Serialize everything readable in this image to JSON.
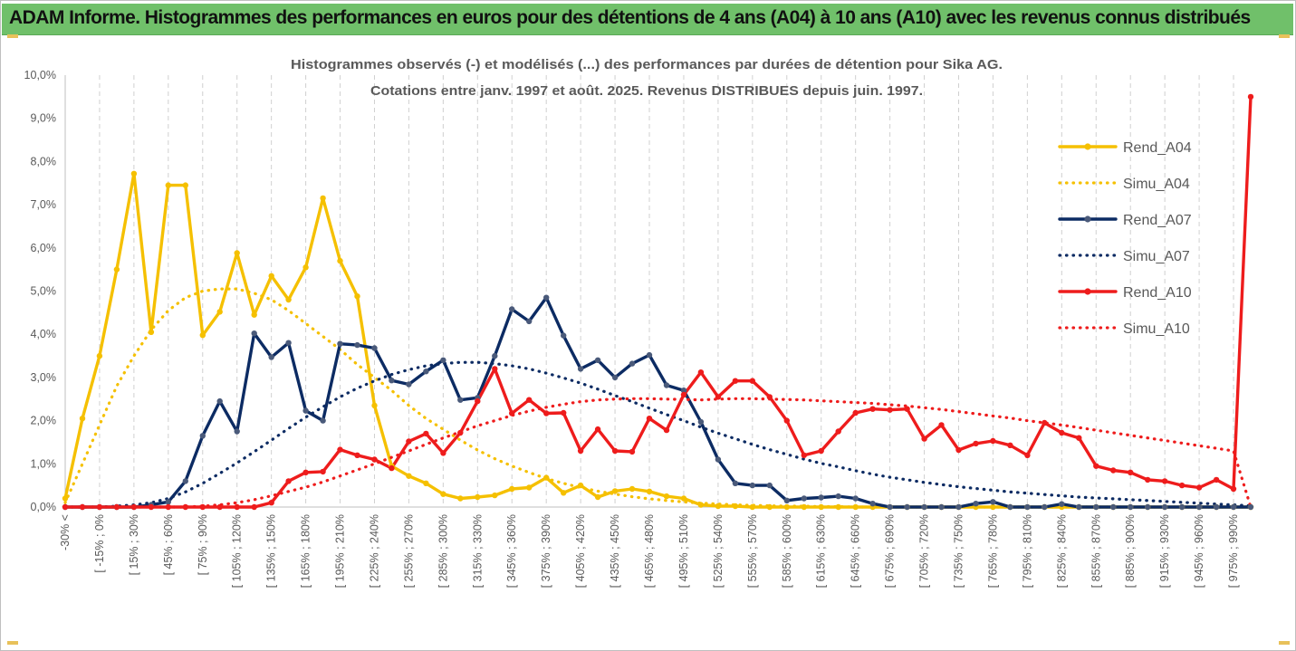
{
  "banner": {
    "title": "ADAM Informe. Histogrammes des performances en euros pour des détentions de 4 ans (A04) à 10 ans (A10) avec les revenus connus distribués"
  },
  "chart_data": {
    "type": "line",
    "title_line1": "Histogrammes observés (-) et modélisés (...) des performances par durées de détention pour Sika AG.",
    "title_line2": "Cotations entre janv. 1997 et août. 2025. Revenus DISTRIBUES depuis juin. 1997.",
    "ylim": [
      0,
      10
    ],
    "y_ticks": [
      "0,0%",
      "1,0%",
      "2,0%",
      "3,0%",
      "4,0%",
      "5,0%",
      "6,0%",
      "7,0%",
      "8,0%",
      "9,0%",
      "10,0%"
    ],
    "x_tick_labels": [
      "-30% <",
      "[ -15% ; 0%",
      "[ 15% ; 30%",
      "[ 45% ; 60%",
      "[ 75% ; 90%",
      "[ 105% ; 120%",
      "[ 135% ; 150%",
      "[ 165% ; 180%",
      "[ 195% ; 210%",
      "[ 225% ; 240%",
      "[ 255% ; 270%",
      "[ 285% ; 300%",
      "[ 315% ; 330%",
      "[ 345% ; 360%",
      "[ 375% ; 390%",
      "[ 405% ; 420%",
      "[ 435% ; 450%",
      "[ 465% ; 480%",
      "[ 495% ; 510%",
      "[ 525% ; 540%",
      "[ 555% ; 570%",
      "[ 585% ; 600%",
      "[ 615% ; 630%",
      "[ 645% ; 660%",
      "[ 675% ; 690%",
      "[ 705% ; 720%",
      "[ 735% ; 750%",
      "[ 765% ; 780%",
      "[ 795% ; 810%",
      "[ 825% ; 840%",
      "[ 855% ; 870%",
      "[ 885% ; 900%",
      "[ 915% ; 930%",
      "[ 945% ; 960%",
      "[ 975% ; 990%"
    ],
    "n_categories": 70,
    "legend_position": "right",
    "grid": "vertical dashed",
    "series": [
      {
        "name": "Rend_A04",
        "style": "solid",
        "color": "#f5c000",
        "values": [
          0.2,
          2.05,
          3.5,
          5.5,
          7.72,
          4.05,
          7.45,
          7.45,
          3.98,
          4.52,
          5.88,
          4.45,
          5.35,
          4.8,
          5.55,
          7.15,
          5.7,
          4.88,
          2.35,
          0.95,
          0.72,
          0.55,
          0.3,
          0.2,
          0.23,
          0.27,
          0.42,
          0.45,
          0.68,
          0.33,
          0.5,
          0.23,
          0.37,
          0.42,
          0.36,
          0.25,
          0.2,
          0.05,
          0.02,
          0.02,
          0.0,
          0.0,
          0.0,
          0.0,
          0.0,
          0.0,
          0.0,
          0.0,
          0.0,
          0.0,
          0.0,
          0.0,
          0.0,
          0.0,
          0.0,
          0.0,
          0.0,
          0.0,
          0.0,
          0.0,
          0.0,
          0.0,
          0.0,
          0.0,
          0.0,
          0.0,
          0.0,
          0.0,
          0.0,
          0.0
        ]
      },
      {
        "name": "Simu_A04",
        "style": "dotted",
        "color": "#f5c000",
        "values": [
          0.1,
          1.0,
          1.9,
          2.8,
          3.5,
          4.1,
          4.55,
          4.85,
          5.0,
          5.05,
          5.05,
          4.95,
          4.8,
          4.55,
          4.25,
          3.95,
          3.65,
          3.3,
          3.0,
          2.7,
          2.35,
          2.05,
          1.8,
          1.55,
          1.32,
          1.12,
          0.95,
          0.8,
          0.66,
          0.55,
          0.45,
          0.37,
          0.3,
          0.24,
          0.19,
          0.15,
          0.12,
          0.09,
          0.07,
          0.05,
          0.04,
          0.03,
          0.02,
          0.02,
          0.01,
          0.01,
          0.0,
          0.0,
          0.0,
          0.0,
          0.0,
          0.0,
          0.0,
          0.0,
          0.0,
          0.0,
          0.0,
          0.0,
          0.0,
          0.0,
          0.0,
          0.0,
          0.0,
          0.0,
          0.0,
          0.0,
          0.0,
          0.0,
          0.0,
          0.0
        ]
      },
      {
        "name": "Rend_A07",
        "style": "solid",
        "color": "#0c2b63",
        "values": [
          0.0,
          0.0,
          0.0,
          0.0,
          0.0,
          0.05,
          0.12,
          0.6,
          1.65,
          2.45,
          1.75,
          4.02,
          3.47,
          3.8,
          2.23,
          2.0,
          3.78,
          3.75,
          3.68,
          2.93,
          2.84,
          3.14,
          3.4,
          2.48,
          2.53,
          3.5,
          4.58,
          4.3,
          4.85,
          3.97,
          3.2,
          3.4,
          3.0,
          3.32,
          3.52,
          2.82,
          2.7,
          1.97,
          1.1,
          0.55,
          0.5,
          0.5,
          0.15,
          0.2,
          0.22,
          0.25,
          0.2,
          0.08,
          0.0,
          0.0,
          0.0,
          0.0,
          0.0,
          0.08,
          0.12,
          0.0,
          0.0,
          0.0,
          0.07,
          0.0,
          0.0,
          0.0,
          0.0,
          0.0,
          0.0,
          0.0,
          0.0,
          0.0,
          0.0,
          0.0
        ]
      },
      {
        "name": "Simu_A07",
        "style": "dotted",
        "color": "#0c2b63",
        "values": [
          0.0,
          0.0,
          0.0,
          0.02,
          0.05,
          0.1,
          0.2,
          0.35,
          0.55,
          0.78,
          1.02,
          1.28,
          1.55,
          1.82,
          2.08,
          2.32,
          2.55,
          2.75,
          2.92,
          3.07,
          3.18,
          3.27,
          3.32,
          3.35,
          3.35,
          3.32,
          3.27,
          3.2,
          3.1,
          2.99,
          2.87,
          2.73,
          2.58,
          2.44,
          2.29,
          2.14,
          2.0,
          1.85,
          1.71,
          1.58,
          1.45,
          1.33,
          1.22,
          1.11,
          1.01,
          0.93,
          0.84,
          0.76,
          0.69,
          0.63,
          0.57,
          0.52,
          0.47,
          0.43,
          0.39,
          0.35,
          0.32,
          0.29,
          0.26,
          0.23,
          0.21,
          0.19,
          0.17,
          0.15,
          0.13,
          0.11,
          0.09,
          0.07,
          0.05,
          0.03
        ]
      },
      {
        "name": "Rend_A10",
        "style": "solid",
        "color": "#ee1c1c",
        "values": [
          0.0,
          0.0,
          0.0,
          0.0,
          0.0,
          0.0,
          0.0,
          0.0,
          0.0,
          0.0,
          0.0,
          0.0,
          0.1,
          0.6,
          0.8,
          0.82,
          1.33,
          1.2,
          1.1,
          0.9,
          1.52,
          1.7,
          1.25,
          1.72,
          2.45,
          3.2,
          2.17,
          2.48,
          2.17,
          2.18,
          1.3,
          1.8,
          1.3,
          1.28,
          2.05,
          1.78,
          2.6,
          3.12,
          2.55,
          2.92,
          2.92,
          2.55,
          2.0,
          1.2,
          1.3,
          1.75,
          2.18,
          2.27,
          2.25,
          2.27,
          1.58,
          1.9,
          1.32,
          1.47,
          1.53,
          1.43,
          1.2,
          1.95,
          1.72,
          1.6,
          0.95,
          0.85,
          0.8,
          0.63,
          0.6,
          0.5,
          0.45,
          0.63,
          0.42,
          9.5
        ]
      },
      {
        "name": "Simu_A10",
        "style": "dotted",
        "color": "#ee1c1c",
        "values": [
          0.0,
          0.0,
          0.0,
          0.0,
          0.0,
          0.0,
          0.0,
          0.0,
          0.02,
          0.05,
          0.1,
          0.17,
          0.26,
          0.36,
          0.46,
          0.58,
          0.72,
          0.86,
          1.0,
          1.15,
          1.3,
          1.45,
          1.6,
          1.74,
          1.88,
          2.0,
          2.12,
          2.22,
          2.31,
          2.38,
          2.44,
          2.48,
          2.5,
          2.51,
          2.51,
          2.5,
          2.49,
          2.48,
          2.5,
          2.51,
          2.51,
          2.5,
          2.49,
          2.48,
          2.46,
          2.44,
          2.42,
          2.4,
          2.37,
          2.34,
          2.3,
          2.26,
          2.21,
          2.16,
          2.11,
          2.06,
          2.0,
          1.95,
          1.9,
          1.84,
          1.78,
          1.72,
          1.66,
          1.6,
          1.54,
          1.48,
          1.42,
          1.36,
          1.3,
          0.0
        ]
      }
    ]
  }
}
